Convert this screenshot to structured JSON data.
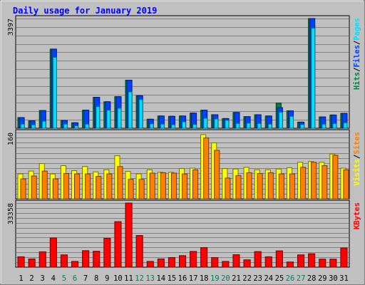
{
  "colors": {
    "hits": "#008040",
    "files": "#0040ff",
    "pages": "#00e0ff",
    "visits": "#ffff00",
    "sites": "#ff8000",
    "kbytes": "#ff0000",
    "title": "#0000ff",
    "weekend": "#00805c",
    "background": "#c0c0c0"
  },
  "chart_data": {
    "type": "bar",
    "title": "Daily usage for January 2019",
    "categories": [
      "1",
      "2",
      "3",
      "4",
      "5",
      "6",
      "7",
      "8",
      "9",
      "10",
      "11",
      "12",
      "13",
      "14",
      "15",
      "16",
      "17",
      "18",
      "19",
      "20",
      "21",
      "22",
      "23",
      "24",
      "25",
      "26",
      "27",
      "28",
      "29",
      "30",
      "31"
    ],
    "weekend_days": [
      "5",
      "6",
      "12",
      "13",
      "19",
      "20",
      "26",
      "27"
    ],
    "panels": [
      {
        "key": "hits",
        "max_label": "3397",
        "ylim": [
          0,
          3397
        ],
        "legend": [
          "Hits",
          "Files",
          "Pages"
        ],
        "series": [
          {
            "name": "Hits",
            "values": [
              330,
              230,
              550,
              2450,
              240,
              170,
              560,
              960,
              820,
              980,
              1490,
              1010,
              280,
              380,
              370,
              380,
              470,
              560,
              420,
              300,
              490,
              360,
              420,
              380,
              780,
              540,
              190,
              3397,
              350,
              410,
              460
            ]
          },
          {
            "name": "Files",
            "values": [
              330,
              230,
              550,
              2450,
              240,
              170,
              560,
              960,
              820,
              980,
              1490,
              1010,
              280,
              380,
              370,
              380,
              470,
              560,
              420,
              300,
              490,
              360,
              420,
              380,
              640,
              540,
              190,
              3397,
              350,
              410,
              460
            ]
          },
          {
            "name": "Pages",
            "values": [
              130,
              110,
              220,
              2200,
              130,
              80,
              130,
              670,
              560,
              620,
              1130,
              890,
              140,
              130,
              110,
              200,
              120,
              310,
              290,
              250,
              150,
              160,
              150,
              130,
              500,
              370,
              120,
              3100,
              130,
              150,
              170
            ]
          }
        ]
      },
      {
        "key": "visits",
        "max_label": "160",
        "ylim": [
          0,
          160
        ],
        "legend": [
          "Visits",
          "Sites"
        ],
        "series": [
          {
            "name": "Visits",
            "values": [
              60,
              67,
              85,
              60,
              80,
              68,
              78,
              65,
              70,
              104,
              66,
              60,
              70,
              64,
              64,
              73,
              74,
              155,
              135,
              73,
              72,
              76,
              70,
              70,
              72,
              75,
              88,
              90,
              88,
              108,
              74
            ]
          },
          {
            "name": "Sites",
            "values": [
              48,
              55,
              67,
              48,
              61,
              60,
              60,
              54,
              60,
              78,
              47,
              47,
              62,
              63,
              62,
              60,
              70,
              147,
              117,
              50,
              56,
              63,
              61,
              63,
              60,
              60,
              76,
              88,
              80,
              105,
              70
            ]
          }
        ]
      },
      {
        "key": "kbytes",
        "max_label": "33358",
        "ylim": [
          0,
          33358
        ],
        "legend": [
          "KBytes"
        ],
        "series": [
          {
            "name": "KBytes",
            "values": [
              5400,
              4300,
              8000,
              15200,
              6400,
              3000,
              8600,
              8300,
              15000,
              23700,
              33358,
              16500,
              3000,
              4300,
              5000,
              6000,
              8200,
              10200,
              5000,
              3000,
              6500,
              3800,
              8100,
              5400,
              8500,
              2700,
              6400,
              7000,
              4200,
              4200,
              10000
            ]
          }
        ]
      }
    ]
  }
}
